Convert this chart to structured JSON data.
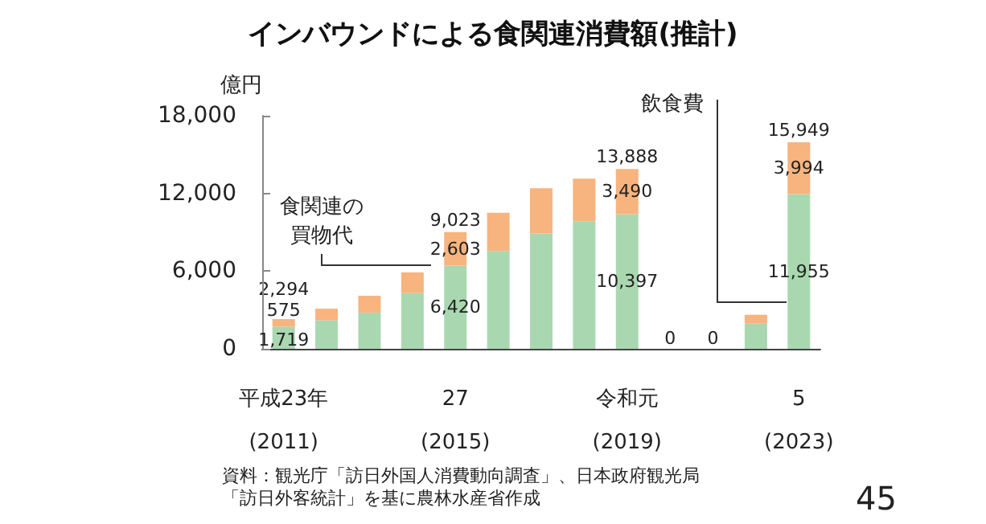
{
  "chart_data": {
    "type": "bar",
    "title": "インバウンドによる食関連消費額(推計)",
    "ylabel": "億円",
    "categories": [
      "平成23年\n(2011)",
      null,
      null,
      null,
      "27\n(2015)",
      null,
      null,
      null,
      "令和元\n(2019)",
      null,
      null,
      null,
      "5\n(2023)"
    ],
    "stacked": true,
    "legend": false,
    "grid": false,
    "series": [
      {
        "name": "食関連の買物代",
        "color": "#a9d8b0",
        "values": [
          1719,
          2200,
          2800,
          4300,
          6420,
          7550,
          8900,
          9850,
          10397,
          0,
          0,
          1950,
          11955
        ],
        "value_labels": [
          "1,719",
          null,
          null,
          null,
          "6,420",
          null,
          null,
          null,
          "10,397",
          "0",
          "0",
          null,
          "11,955"
        ]
      },
      {
        "name": "飲食費",
        "color": "#f7b47f",
        "values": [
          575,
          900,
          1300,
          1600,
          2603,
          2950,
          3500,
          3300,
          3490,
          0,
          0,
          680,
          3994
        ],
        "value_labels": [
          "575",
          null,
          null,
          null,
          "2,603",
          null,
          null,
          null,
          "3,490",
          null,
          null,
          null,
          "3,994"
        ]
      }
    ],
    "totals": [
      "2,294",
      null,
      null,
      null,
      "9,023",
      null,
      null,
      null,
      "13,888",
      null,
      null,
      null,
      "15,949"
    ],
    "ylim": [
      0,
      18000
    ],
    "yticks": [
      {
        "value": 0,
        "label": "0"
      },
      {
        "value": 6000,
        "label": "6,000"
      },
      {
        "value": 12000,
        "label": "12,000"
      },
      {
        "value": 18000,
        "label": "18,000"
      }
    ],
    "annotations": [
      "資料：観光庁「訪日外国人消費動向調査」、日本政府観光局「訪日外客統計」を基に農林水産省作成",
      "45"
    ]
  }
}
